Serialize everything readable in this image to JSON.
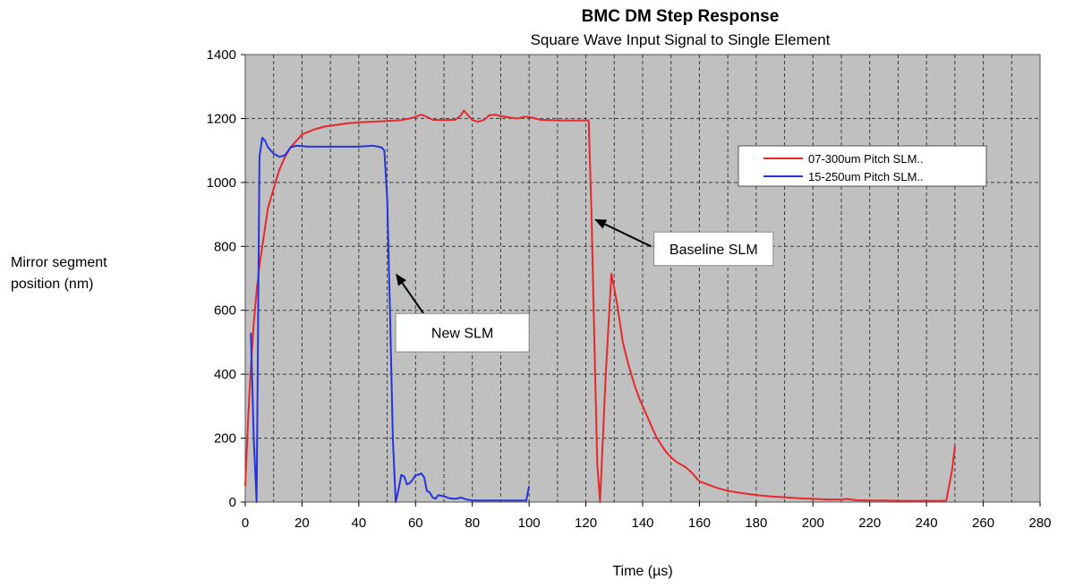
{
  "chart_data": {
    "type": "line",
    "title": "BMC DM Step Response",
    "subtitle": "Square Wave Input Signal to Single Element",
    "xlabel": "Time (µs)",
    "ylabel_lines": [
      "Mirror segment",
      "position (nm)"
    ],
    "xlim": [
      0,
      280
    ],
    "ylim": [
      0,
      1400
    ],
    "xticks": [
      0,
      20,
      40,
      60,
      80,
      100,
      120,
      140,
      160,
      180,
      200,
      220,
      240,
      260,
      280
    ],
    "yticks": [
      0,
      200,
      400,
      600,
      800,
      1000,
      1200,
      1400
    ],
    "grid": true,
    "grid_minor_x": true,
    "plot_background": "#c0c0c0",
    "legend_position": "right",
    "series": [
      {
        "name": "07-300um Pitch SLM..",
        "color": "#e8282d",
        "points": [
          [
            0,
            50
          ],
          [
            1,
            260
          ],
          [
            2,
            420
          ],
          [
            3,
            560
          ],
          [
            4,
            660
          ],
          [
            5,
            740
          ],
          [
            6,
            800
          ],
          [
            7,
            860
          ],
          [
            8,
            920
          ],
          [
            10,
            980
          ],
          [
            12,
            1040
          ],
          [
            14,
            1080
          ],
          [
            16,
            1110
          ],
          [
            18,
            1130
          ],
          [
            20,
            1150
          ],
          [
            24,
            1165
          ],
          [
            28,
            1175
          ],
          [
            32,
            1180
          ],
          [
            36,
            1185
          ],
          [
            40,
            1188
          ],
          [
            45,
            1190
          ],
          [
            50,
            1192
          ],
          [
            55,
            1195
          ],
          [
            58,
            1200
          ],
          [
            60,
            1205
          ],
          [
            62,
            1212
          ],
          [
            64,
            1205
          ],
          [
            66,
            1196
          ],
          [
            70,
            1195
          ],
          [
            74,
            1196
          ],
          [
            76,
            1210
          ],
          [
            77,
            1225
          ],
          [
            78,
            1215
          ],
          [
            80,
            1195
          ],
          [
            82,
            1190
          ],
          [
            84,
            1195
          ],
          [
            86,
            1210
          ],
          [
            88,
            1212
          ],
          [
            90,
            1208
          ],
          [
            92,
            1205
          ],
          [
            94,
            1202
          ],
          [
            96,
            1200
          ],
          [
            98,
            1205
          ],
          [
            100,
            1205
          ],
          [
            104,
            1196
          ],
          [
            110,
            1194
          ],
          [
            116,
            1194
          ],
          [
            121,
            1194
          ],
          [
            122,
            900
          ],
          [
            123,
            500
          ],
          [
            124,
            120
          ],
          [
            125,
            0
          ],
          [
            127,
            400
          ],
          [
            129,
            715
          ],
          [
            131,
            620
          ],
          [
            133,
            500
          ],
          [
            135,
            430
          ],
          [
            137,
            370
          ],
          [
            139,
            320
          ],
          [
            141,
            280
          ],
          [
            143,
            240
          ],
          [
            145,
            200
          ],
          [
            148,
            160
          ],
          [
            150,
            140
          ],
          [
            152,
            125
          ],
          [
            155,
            110
          ],
          [
            157,
            95
          ],
          [
            160,
            65
          ],
          [
            163,
            55
          ],
          [
            166,
            45
          ],
          [
            170,
            35
          ],
          [
            175,
            28
          ],
          [
            180,
            22
          ],
          [
            185,
            18
          ],
          [
            190,
            15
          ],
          [
            195,
            12
          ],
          [
            200,
            10
          ],
          [
            205,
            8
          ],
          [
            210,
            8
          ],
          [
            212,
            10
          ],
          [
            215,
            6
          ],
          [
            220,
            5
          ],
          [
            225,
            5
          ],
          [
            230,
            4
          ],
          [
            235,
            4
          ],
          [
            240,
            4
          ],
          [
            245,
            4
          ],
          [
            247,
            5
          ],
          [
            249,
            100
          ],
          [
            250,
            175
          ]
        ]
      },
      {
        "name": "15-250um Pitch SLM..",
        "color": "#2534e0",
        "points": [
          [
            2,
            530
          ],
          [
            3,
            200
          ],
          [
            4,
            0
          ],
          [
            5,
            1080
          ],
          [
            6,
            1140
          ],
          [
            7,
            1130
          ],
          [
            8,
            1110
          ],
          [
            10,
            1090
          ],
          [
            12,
            1080
          ],
          [
            14,
            1085
          ],
          [
            16,
            1110
          ],
          [
            18,
            1115
          ],
          [
            22,
            1112
          ],
          [
            26,
            1112
          ],
          [
            30,
            1112
          ],
          [
            35,
            1112
          ],
          [
            40,
            1112
          ],
          [
            45,
            1115
          ],
          [
            48,
            1110
          ],
          [
            49,
            1100
          ],
          [
            50,
            950
          ],
          [
            51,
            600
          ],
          [
            52,
            200
          ],
          [
            53,
            0
          ],
          [
            54,
            40
          ],
          [
            55,
            85
          ],
          [
            56,
            80
          ],
          [
            57,
            55
          ],
          [
            58,
            60
          ],
          [
            59,
            70
          ],
          [
            60,
            85
          ],
          [
            61,
            85
          ],
          [
            62,
            90
          ],
          [
            63,
            78
          ],
          [
            64,
            35
          ],
          [
            65,
            30
          ],
          [
            66,
            15
          ],
          [
            67,
            10
          ],
          [
            68,
            22
          ],
          [
            70,
            18
          ],
          [
            72,
            12
          ],
          [
            74,
            10
          ],
          [
            76,
            14
          ],
          [
            78,
            8
          ],
          [
            80,
            5
          ],
          [
            85,
            5
          ],
          [
            90,
            5
          ],
          [
            95,
            5
          ],
          [
            99,
            5
          ],
          [
            100,
            50
          ]
        ]
      }
    ],
    "annotations": [
      {
        "text": "New SLM",
        "box_x": 53,
        "box_y": 590,
        "box_x2": 100,
        "box_y2": 470,
        "arrow_from": [
          65,
          562
        ],
        "arrow_to": [
          53,
          715
        ]
      },
      {
        "text": "Baseline SLM",
        "box_x": 144,
        "box_y": 845,
        "box_x2": 186,
        "box_y2": 740,
        "arrow_from": [
          143,
          800
        ],
        "arrow_to": [
          123,
          885
        ]
      }
    ]
  }
}
